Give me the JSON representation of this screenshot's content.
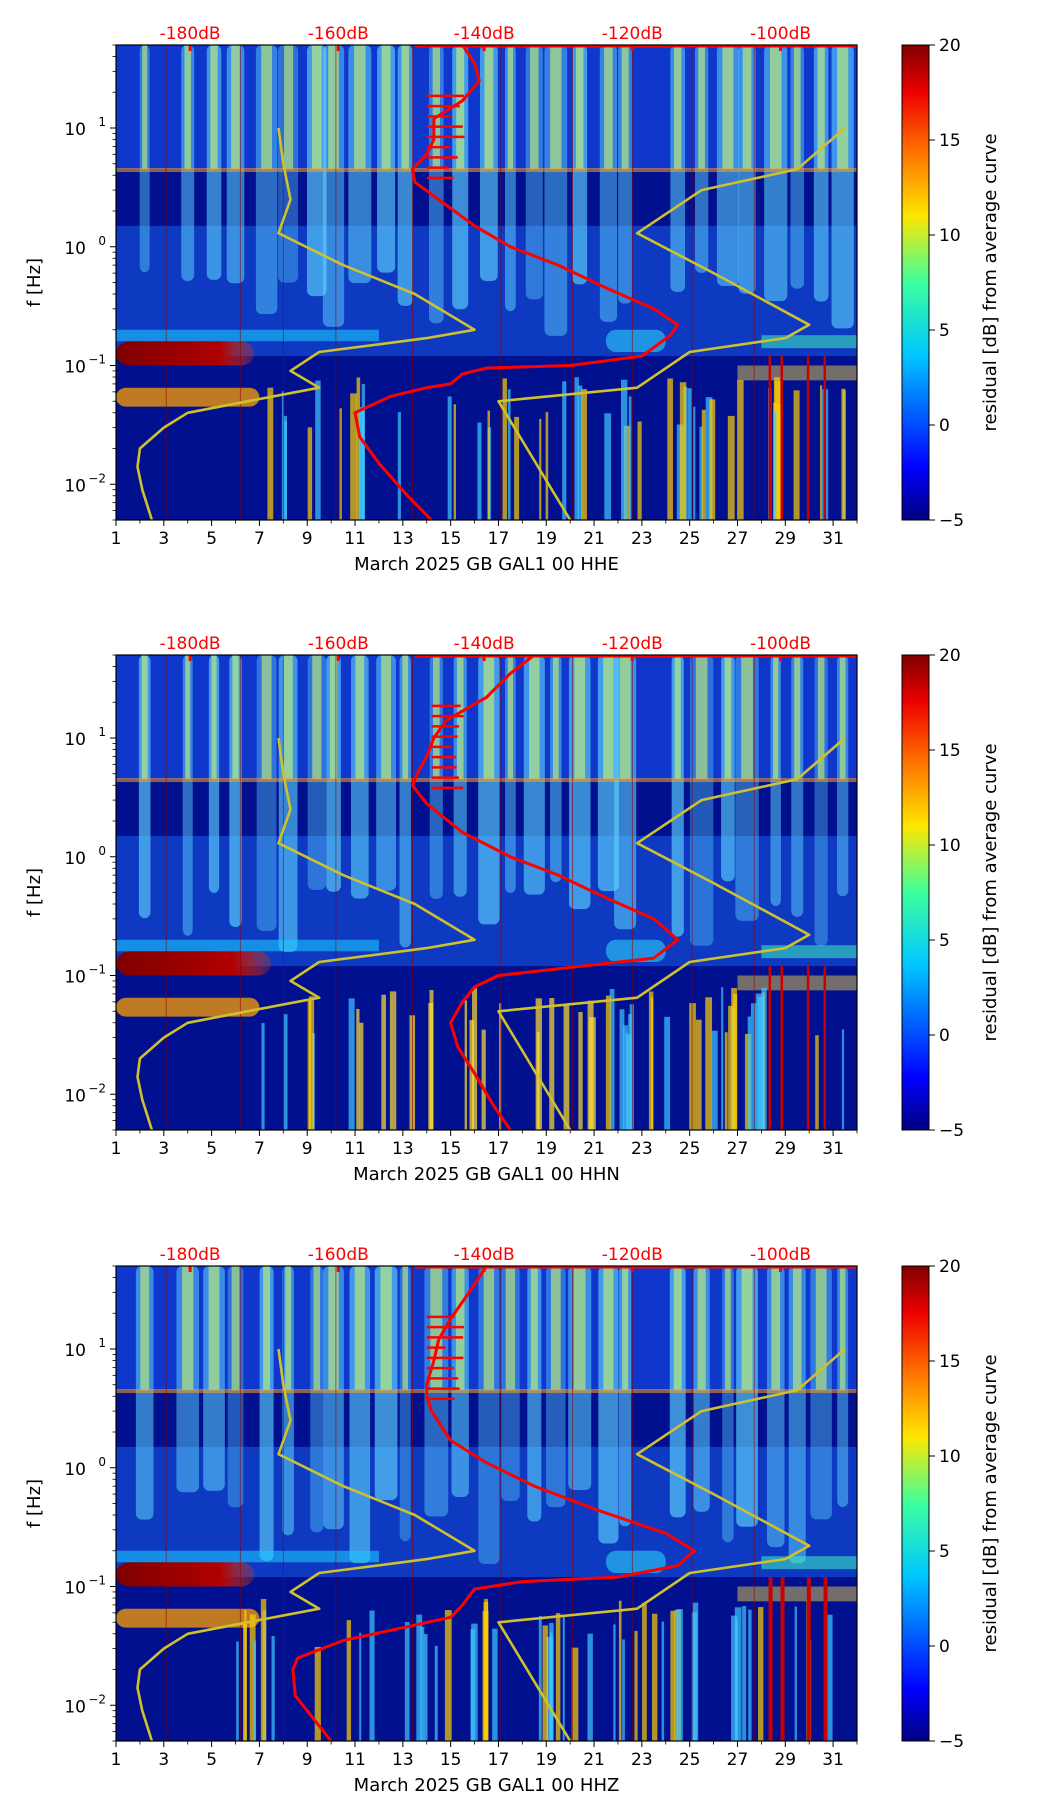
{
  "chart_data": [
    {
      "type": "heatmap",
      "title": "",
      "xlabel": "March 2025 GB GAL1 00 HHE",
      "ylabel": "f [Hz]",
      "colorbar_label": "residual [dB] from average curve",
      "colorbar_range": [
        -5,
        20
      ],
      "colorbar_ticks": [
        -5,
        0,
        5,
        10,
        15,
        20
      ],
      "xlim": [
        1,
        32
      ],
      "x_ticks": [
        1,
        3,
        5,
        7,
        9,
        11,
        13,
        15,
        17,
        19,
        21,
        23,
        25,
        27,
        29,
        31
      ],
      "ylim": [
        0.005,
        50
      ],
      "y_ticks": [
        0.01,
        0.1,
        1,
        10
      ],
      "y_tick_labels": [
        "10",
        "10",
        "10",
        "10"
      ],
      "y_tick_exponents": [
        "−2",
        "−1",
        "0",
        "1"
      ],
      "db_scale_labels": [
        "-180dB",
        "-160dB",
        "-140dB",
        "-120dB",
        "-100dB"
      ],
      "series": [
        {
          "name": "average curve",
          "color": "#ff0000",
          "points": [
            [
              14.2,
              0.005
            ],
            [
              13.2,
              0.008
            ],
            [
              12.0,
              0.015
            ],
            [
              11.2,
              0.025
            ],
            [
              11.0,
              0.04
            ],
            [
              12.5,
              0.055
            ],
            [
              14.0,
              0.065
            ],
            [
              15.0,
              0.07
            ],
            [
              15.5,
              0.085
            ],
            [
              16.5,
              0.095
            ],
            [
              20.0,
              0.1
            ],
            [
              23.0,
              0.12
            ],
            [
              24.2,
              0.18
            ],
            [
              24.5,
              0.22
            ],
            [
              23.5,
              0.3
            ],
            [
              21.5,
              0.45
            ],
            [
              19.5,
              0.7
            ],
            [
              17.5,
              1.0
            ],
            [
              16.0,
              1.5
            ],
            [
              14.5,
              2.5
            ],
            [
              13.5,
              3.5
            ],
            [
              13.4,
              4.5
            ],
            [
              14.0,
              6
            ],
            [
              14.3,
              8
            ],
            [
              14.3,
              12
            ],
            [
              15.5,
              17
            ],
            [
              16.2,
              25
            ],
            [
              16.0,
              35
            ],
            [
              15.5,
              50
            ]
          ]
        },
        {
          "name": "model curve",
          "color": "#cfc02e",
          "points": [
            [
              2.5,
              0.005
            ],
            [
              2.1,
              0.009
            ],
            [
              1.9,
              0.014
            ],
            [
              2.0,
              0.02
            ],
            [
              3.0,
              0.03
            ],
            [
              4.0,
              0.04
            ],
            [
              6.5,
              0.05
            ],
            [
              9.5,
              0.065
            ],
            [
              8.3,
              0.09
            ],
            [
              9.5,
              0.13
            ],
            [
              14.0,
              0.17
            ],
            [
              16.0,
              0.2
            ],
            [
              13.5,
              0.4
            ],
            [
              10.5,
              0.7
            ],
            [
              7.8,
              1.3
            ],
            [
              8.3,
              2.5
            ],
            [
              8.0,
              5
            ],
            [
              7.8,
              10
            ]
          ]
        },
        {
          "name": "model curve 2",
          "color": "#cfc02e",
          "points": [
            [
              20.0,
              0.005
            ],
            [
              17.0,
              0.05
            ],
            [
              22.8,
              0.065
            ],
            [
              25.0,
              0.13
            ],
            [
              29.0,
              0.17
            ],
            [
              30.0,
              0.22
            ],
            [
              26.0,
              0.6
            ],
            [
              22.8,
              1.3
            ],
            [
              25.5,
              3.0
            ],
            [
              29.5,
              4.5
            ],
            [
              31.5,
              10
            ]
          ]
        }
      ]
    },
    {
      "type": "heatmap",
      "title": "",
      "xlabel": "March 2025 GB GAL1 00 HHN",
      "ylabel": "f [Hz]",
      "colorbar_label": "residual [dB] from average curve",
      "colorbar_range": [
        -5,
        20
      ],
      "colorbar_ticks": [
        -5,
        0,
        5,
        10,
        15,
        20
      ],
      "xlim": [
        1,
        32
      ],
      "x_ticks": [
        1,
        3,
        5,
        7,
        9,
        11,
        13,
        15,
        17,
        19,
        21,
        23,
        25,
        27,
        29,
        31
      ],
      "ylim": [
        0.005,
        50
      ],
      "y_ticks": [
        0.01,
        0.1,
        1,
        10
      ],
      "y_tick_labels": [
        "10",
        "10",
        "10",
        "10"
      ],
      "y_tick_exponents": [
        "−2",
        "−1",
        "0",
        "1"
      ],
      "db_scale_labels": [
        "-180dB",
        "-160dB",
        "-140dB",
        "-120dB",
        "-100dB"
      ],
      "series": [
        {
          "name": "average curve",
          "color": "#ff0000",
          "points": [
            [
              17.5,
              0.005
            ],
            [
              16.8,
              0.008
            ],
            [
              16.0,
              0.015
            ],
            [
              15.3,
              0.025
            ],
            [
              15.0,
              0.04
            ],
            [
              15.5,
              0.06
            ],
            [
              16.0,
              0.08
            ],
            [
              17.0,
              0.1
            ],
            [
              20.5,
              0.12
            ],
            [
              23.5,
              0.14
            ],
            [
              24.5,
              0.2
            ],
            [
              23.5,
              0.3
            ],
            [
              21.5,
              0.45
            ],
            [
              19.5,
              0.7
            ],
            [
              17.5,
              1.0
            ],
            [
              15.5,
              1.6
            ],
            [
              14.0,
              2.8
            ],
            [
              13.4,
              4.0
            ],
            [
              13.6,
              5
            ],
            [
              14.0,
              7
            ],
            [
              14.3,
              10
            ],
            [
              14.8,
              14
            ],
            [
              16.5,
              22
            ],
            [
              17.5,
              35
            ],
            [
              18.5,
              50
            ]
          ]
        },
        {
          "name": "model curve",
          "color": "#cfc02e",
          "points": [
            [
              2.5,
              0.005
            ],
            [
              2.1,
              0.009
            ],
            [
              1.9,
              0.014
            ],
            [
              2.0,
              0.02
            ],
            [
              3.0,
              0.03
            ],
            [
              4.0,
              0.04
            ],
            [
              6.5,
              0.05
            ],
            [
              9.5,
              0.065
            ],
            [
              8.3,
              0.09
            ],
            [
              9.5,
              0.13
            ],
            [
              14.0,
              0.17
            ],
            [
              16.0,
              0.2
            ],
            [
              13.5,
              0.4
            ],
            [
              10.5,
              0.7
            ],
            [
              7.8,
              1.3
            ],
            [
              8.3,
              2.5
            ],
            [
              8.0,
              5
            ],
            [
              7.8,
              10
            ]
          ]
        },
        {
          "name": "model curve 2",
          "color": "#cfc02e",
          "points": [
            [
              20.0,
              0.005
            ],
            [
              17.0,
              0.05
            ],
            [
              22.8,
              0.065
            ],
            [
              25.0,
              0.13
            ],
            [
              29.0,
              0.17
            ],
            [
              30.0,
              0.22
            ],
            [
              26.0,
              0.6
            ],
            [
              22.8,
              1.3
            ],
            [
              25.5,
              3.0
            ],
            [
              29.5,
              4.5
            ],
            [
              31.5,
              10
            ]
          ]
        }
      ]
    },
    {
      "type": "heatmap",
      "title": "",
      "xlabel": "March 2025 GB GAL1 00 HHZ",
      "ylabel": "f [Hz]",
      "colorbar_label": "residual [dB] from average curve",
      "colorbar_range": [
        -5,
        20
      ],
      "colorbar_ticks": [
        -5,
        0,
        5,
        10,
        15,
        20
      ],
      "xlim": [
        1,
        32
      ],
      "x_ticks": [
        1,
        3,
        5,
        7,
        9,
        11,
        13,
        15,
        17,
        19,
        21,
        23,
        25,
        27,
        29,
        31
      ],
      "ylim": [
        0.005,
        50
      ],
      "y_ticks": [
        0.01,
        0.1,
        1,
        10
      ],
      "y_tick_labels": [
        "10",
        "10",
        "10",
        "10"
      ],
      "y_tick_exponents": [
        "−2",
        "−1",
        "0",
        "1"
      ],
      "db_scale_labels": [
        "-180dB",
        "-160dB",
        "-140dB",
        "-120dB",
        "-100dB"
      ],
      "series": [
        {
          "name": "average curve",
          "color": "#ff0000",
          "points": [
            [
              10.0,
              0.005
            ],
            [
              9.2,
              0.008
            ],
            [
              8.5,
              0.012
            ],
            [
              8.4,
              0.02
            ],
            [
              8.6,
              0.025
            ],
            [
              10.5,
              0.035
            ],
            [
              13.0,
              0.045
            ],
            [
              15.0,
              0.055
            ],
            [
              15.5,
              0.07
            ],
            [
              16.0,
              0.095
            ],
            [
              18.0,
              0.11
            ],
            [
              22.0,
              0.12
            ],
            [
              24.5,
              0.15
            ],
            [
              25.2,
              0.2
            ],
            [
              24.0,
              0.28
            ],
            [
              21.0,
              0.45
            ],
            [
              18.5,
              0.7
            ],
            [
              16.5,
              1.1
            ],
            [
              15.0,
              1.7
            ],
            [
              14.2,
              3.0
            ],
            [
              14.0,
              4.0
            ],
            [
              14.0,
              5
            ],
            [
              14.3,
              8
            ],
            [
              14.5,
              12
            ],
            [
              15.0,
              18
            ],
            [
              15.5,
              25
            ],
            [
              16.0,
              35
            ],
            [
              16.5,
              50
            ]
          ]
        },
        {
          "name": "model curve",
          "color": "#cfc02e",
          "points": [
            [
              2.5,
              0.005
            ],
            [
              2.1,
              0.009
            ],
            [
              1.9,
              0.014
            ],
            [
              2.0,
              0.02
            ],
            [
              3.0,
              0.03
            ],
            [
              4.0,
              0.04
            ],
            [
              6.5,
              0.05
            ],
            [
              9.5,
              0.065
            ],
            [
              8.3,
              0.09
            ],
            [
              9.5,
              0.13
            ],
            [
              14.0,
              0.17
            ],
            [
              16.0,
              0.2
            ],
            [
              13.5,
              0.4
            ],
            [
              10.5,
              0.7
            ],
            [
              7.8,
              1.3
            ],
            [
              8.3,
              2.5
            ],
            [
              8.0,
              5
            ],
            [
              7.8,
              10
            ]
          ]
        },
        {
          "name": "model curve 2",
          "color": "#cfc02e",
          "points": [
            [
              20.0,
              0.005
            ],
            [
              17.0,
              0.05
            ],
            [
              22.8,
              0.065
            ],
            [
              25.0,
              0.13
            ],
            [
              29.0,
              0.17
            ],
            [
              30.0,
              0.22
            ],
            [
              26.0,
              0.6
            ],
            [
              22.8,
              1.3
            ],
            [
              25.5,
              3.0
            ],
            [
              29.5,
              4.5
            ],
            [
              31.5,
              10
            ]
          ]
        }
      ]
    }
  ]
}
